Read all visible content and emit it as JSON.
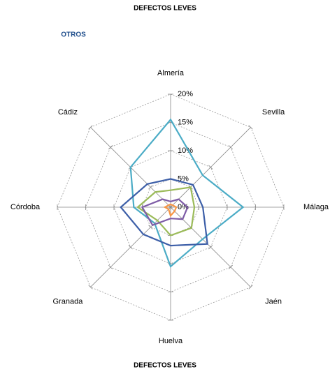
{
  "chart_data": {
    "type": "radar",
    "title": "DEFECTOS LEVES",
    "subtitle": "OTROS",
    "caption": "DEFECTOS LEVES",
    "categories": [
      "Almería",
      "Sevilla",
      "Málaga",
      "Jaén",
      "Huelva",
      "Granada",
      "Córdoba",
      "Cádiz"
    ],
    "series": [
      {
        "color": "#4bacc6",
        "values": [
          15.5,
          8,
          12.8,
          8,
          10.5,
          4,
          6.5,
          10
        ]
      },
      {
        "color": "#3d5fa8",
        "values": [
          5,
          5.6,
          5.7,
          9.2,
          6.8,
          6.8,
          8.8,
          5.8
        ]
      },
      {
        "color": "#9bbb59",
        "values": [
          3,
          5,
          4.2,
          5.2,
          5,
          3.3,
          5.8,
          3.8
        ]
      },
      {
        "color": "#7d5ba6",
        "values": [
          1,
          2,
          3,
          3,
          2,
          4.5,
          5,
          2
        ]
      },
      {
        "color": "#f79646",
        "values": [
          0.5,
          0.5,
          1,
          1,
          1.5,
          0.5,
          1,
          0.5
        ]
      }
    ],
    "ylim": [
      0,
      20
    ],
    "yticks": [
      {
        "value": 0,
        "label": "0%"
      },
      {
        "value": 5,
        "label": "5%"
      },
      {
        "value": 10,
        "label": "10%"
      },
      {
        "value": 15,
        "label": "15%"
      },
      {
        "value": 20,
        "label": "20%"
      }
    ],
    "grid": true
  }
}
